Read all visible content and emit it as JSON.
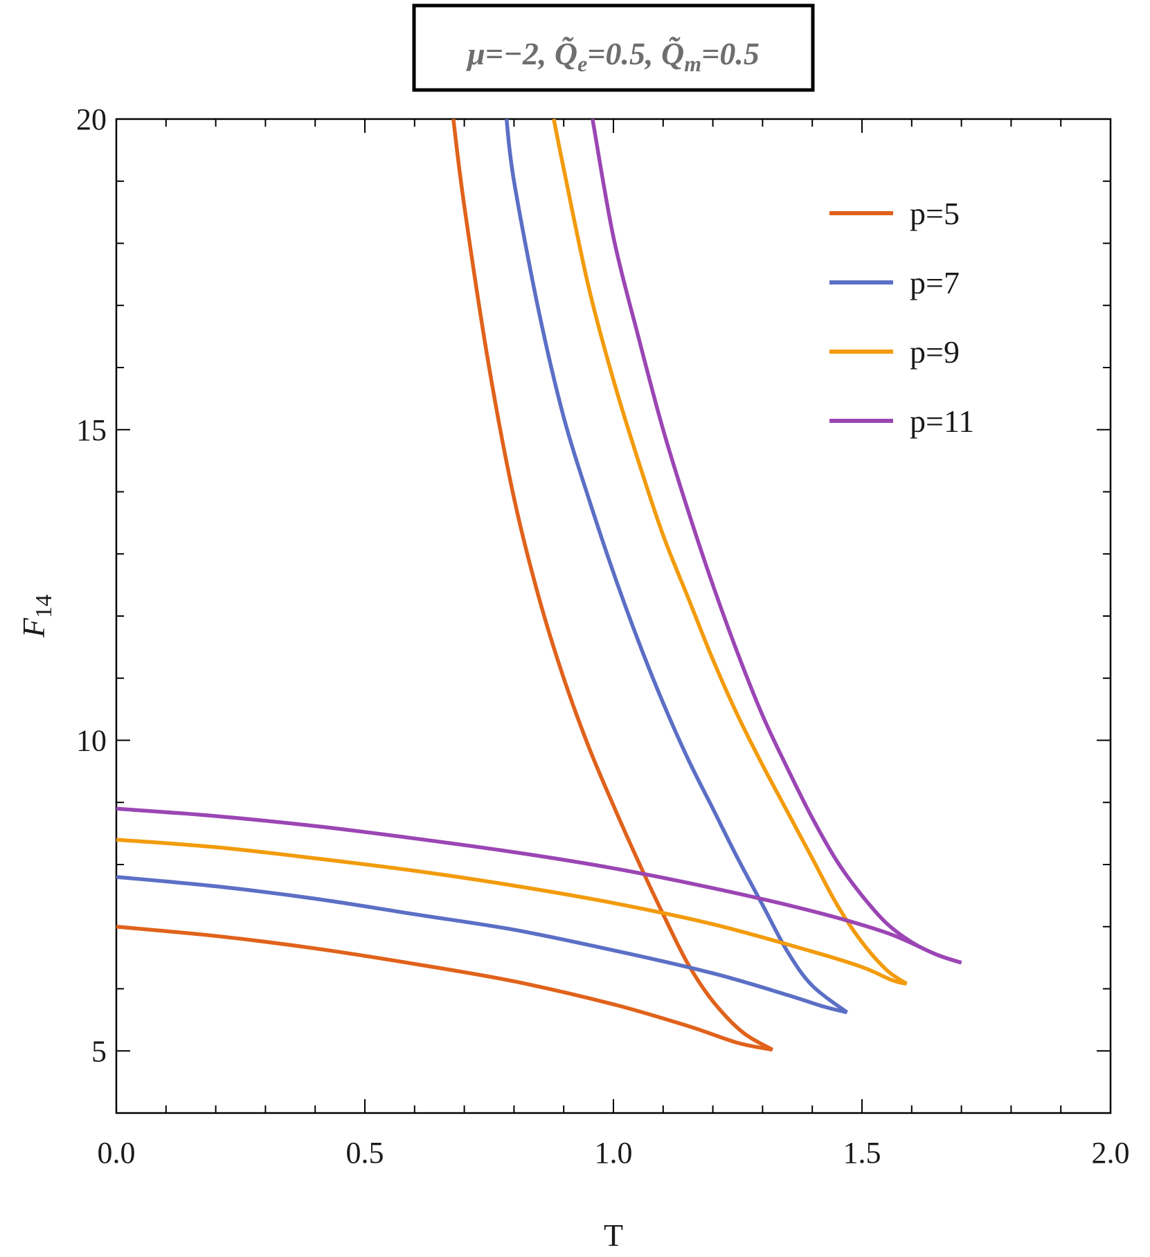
{
  "chart_data": {
    "type": "line",
    "title": "μ=−2, Q̃e=0.5, Q̃m=0.5",
    "title_parts": {
      "mu": "μ=−2, ",
      "qe_base": "Q̃",
      "qe_sub": "e",
      "qe_val": "=0.5, ",
      "qm_base": "Q̃",
      "qm_sub": "m",
      "qm_val": "=0.5"
    },
    "xlabel": "T",
    "ylabel_base": "F",
    "ylabel_sub": "14",
    "xlim": [
      0.0,
      2.0
    ],
    "ylim": [
      4.0,
      20.0
    ],
    "x_ticks": [
      0.0,
      0.5,
      1.0,
      1.5,
      2.0
    ],
    "x_tick_labels": [
      "0.0",
      "0.5",
      "1.0",
      "1.5",
      "2.0"
    ],
    "y_ticks": [
      5,
      10,
      15,
      20
    ],
    "y_tick_labels": [
      "5",
      "10",
      "15",
      "20"
    ],
    "legend_position": "top-right",
    "series": [
      {
        "name": "p=5",
        "color": "#e0621b",
        "lower_branch": [
          [
            0.0,
            7.0
          ],
          [
            0.2,
            6.85
          ],
          [
            0.4,
            6.65
          ],
          [
            0.6,
            6.4
          ],
          [
            0.8,
            6.12
          ],
          [
            1.0,
            5.75
          ],
          [
            1.15,
            5.4
          ],
          [
            1.25,
            5.13
          ],
          [
            1.32,
            5.02
          ]
        ],
        "upper_branch": [
          [
            0.678,
            20.0
          ],
          [
            0.7,
            18.6
          ],
          [
            0.75,
            16.0
          ],
          [
            0.8,
            13.9
          ],
          [
            0.85,
            12.3
          ],
          [
            0.9,
            11.0
          ],
          [
            0.95,
            9.9
          ],
          [
            1.0,
            8.95
          ],
          [
            1.05,
            8.05
          ],
          [
            1.1,
            7.2
          ],
          [
            1.15,
            6.4
          ],
          [
            1.2,
            5.8
          ],
          [
            1.26,
            5.3
          ],
          [
            1.32,
            5.02
          ]
        ]
      },
      {
        "name": "p=7",
        "color": "#5b6fc5",
        "lower_branch": [
          [
            0.0,
            7.8
          ],
          [
            0.2,
            7.65
          ],
          [
            0.4,
            7.45
          ],
          [
            0.6,
            7.2
          ],
          [
            0.8,
            6.95
          ],
          [
            1.0,
            6.62
          ],
          [
            1.2,
            6.25
          ],
          [
            1.35,
            5.9
          ],
          [
            1.42,
            5.72
          ],
          [
            1.47,
            5.62
          ]
        ],
        "upper_branch": [
          [
            0.785,
            20.0
          ],
          [
            0.8,
            19.0
          ],
          [
            0.85,
            16.9
          ],
          [
            0.9,
            15.2
          ],
          [
            0.95,
            13.9
          ],
          [
            1.0,
            12.7
          ],
          [
            1.05,
            11.6
          ],
          [
            1.1,
            10.6
          ],
          [
            1.15,
            9.7
          ],
          [
            1.2,
            8.9
          ],
          [
            1.25,
            8.1
          ],
          [
            1.3,
            7.35
          ],
          [
            1.35,
            6.6
          ],
          [
            1.4,
            6.05
          ],
          [
            1.47,
            5.62
          ]
        ]
      },
      {
        "name": "p=9",
        "color": "#f29b0c",
        "lower_branch": [
          [
            0.0,
            8.4
          ],
          [
            0.2,
            8.28
          ],
          [
            0.4,
            8.1
          ],
          [
            0.6,
            7.9
          ],
          [
            0.8,
            7.66
          ],
          [
            1.0,
            7.38
          ],
          [
            1.2,
            7.04
          ],
          [
            1.4,
            6.6
          ],
          [
            1.5,
            6.35
          ],
          [
            1.56,
            6.14
          ],
          [
            1.59,
            6.08
          ]
        ],
        "upper_branch": [
          [
            0.88,
            20.0
          ],
          [
            0.9,
            19.2
          ],
          [
            0.95,
            17.3
          ],
          [
            1.0,
            15.8
          ],
          [
            1.05,
            14.5
          ],
          [
            1.1,
            13.3
          ],
          [
            1.15,
            12.3
          ],
          [
            1.2,
            11.3
          ],
          [
            1.25,
            10.4
          ],
          [
            1.3,
            9.6
          ],
          [
            1.35,
            8.85
          ],
          [
            1.4,
            8.1
          ],
          [
            1.45,
            7.35
          ],
          [
            1.5,
            6.75
          ],
          [
            1.55,
            6.3
          ],
          [
            1.59,
            6.08
          ]
        ]
      },
      {
        "name": "p=11",
        "color": "#9b46b4",
        "lower_branch": [
          [
            0.0,
            8.9
          ],
          [
            0.2,
            8.78
          ],
          [
            0.4,
            8.62
          ],
          [
            0.6,
            8.42
          ],
          [
            0.8,
            8.2
          ],
          [
            1.0,
            7.94
          ],
          [
            1.2,
            7.62
          ],
          [
            1.4,
            7.25
          ],
          [
            1.55,
            6.9
          ],
          [
            1.65,
            6.55
          ],
          [
            1.7,
            6.42
          ]
        ],
        "upper_branch": [
          [
            0.958,
            20.0
          ],
          [
            1.0,
            18.1
          ],
          [
            1.05,
            16.5
          ],
          [
            1.1,
            15.0
          ],
          [
            1.15,
            13.7
          ],
          [
            1.2,
            12.5
          ],
          [
            1.25,
            11.4
          ],
          [
            1.3,
            10.4
          ],
          [
            1.35,
            9.55
          ],
          [
            1.4,
            8.75
          ],
          [
            1.45,
            8.05
          ],
          [
            1.5,
            7.5
          ],
          [
            1.55,
            7.05
          ],
          [
            1.6,
            6.75
          ],
          [
            1.65,
            6.55
          ],
          [
            1.7,
            6.42
          ]
        ]
      }
    ]
  }
}
